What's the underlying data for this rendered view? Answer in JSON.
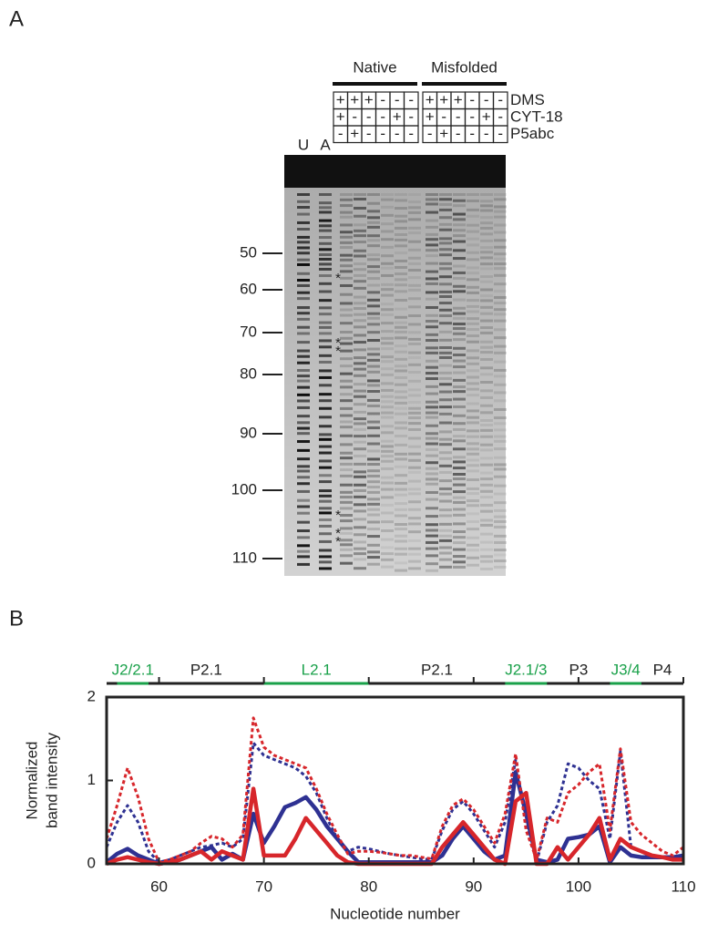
{
  "panel_a": {
    "label": "A",
    "groups": [
      "Native",
      "Misfolded"
    ],
    "conditions": [
      {
        "name": "DMS",
        "signs": [
          "+",
          "+",
          "+",
          "-",
          "-",
          "-",
          "+",
          "+",
          "+",
          "-",
          "-",
          "-"
        ]
      },
      {
        "name": "CYT-18",
        "signs": [
          "+",
          "-",
          "-",
          "-",
          "+",
          "-",
          "+",
          "-",
          "-",
          "-",
          "+",
          "-"
        ]
      },
      {
        "name": "P5abc",
        "signs": [
          "-",
          "+",
          "-",
          "-",
          "-",
          "-",
          "-",
          "+",
          "-",
          "-",
          "-",
          "-"
        ]
      }
    ],
    "ladders": [
      "U",
      "A"
    ],
    "markers": [
      50,
      60,
      70,
      80,
      90,
      100,
      110
    ],
    "asterisk": "*"
  },
  "panel_b_label": "B",
  "chart_data": {
    "type": "line",
    "x_label": "Nucleotide number",
    "y_label": [
      "Normalized",
      "band intensity"
    ],
    "xlim": [
      55,
      110
    ],
    "ylim": [
      0,
      2
    ],
    "xticks": [
      60,
      70,
      80,
      90,
      100,
      110
    ],
    "yticks": [
      0,
      1,
      2
    ],
    "regions": [
      {
        "name": "J2/2.1",
        "start": 56,
        "end": 59,
        "color": "#1aa14a"
      },
      {
        "name": "P2.1",
        "start": 59,
        "end": 70,
        "color": "#222222"
      },
      {
        "name": "L2.1",
        "start": 70,
        "end": 80,
        "color": "#1aa14a"
      },
      {
        "name": "P2.1",
        "start": 80,
        "end": 93,
        "color": "#222222"
      },
      {
        "name": "J2.1/3",
        "start": 93,
        "end": 97,
        "color": "#1aa14a"
      },
      {
        "name": "P3",
        "start": 97,
        "end": 103,
        "color": "#222222"
      },
      {
        "name": "J3/4",
        "start": 103,
        "end": 106,
        "color": "#1aa14a"
      },
      {
        "name": "P4",
        "start": 106,
        "end": 110,
        "color": "#222222"
      }
    ],
    "x": [
      55,
      56,
      57,
      58,
      59,
      60,
      61,
      62,
      63,
      64,
      65,
      66,
      67,
      68,
      69,
      70,
      71,
      72,
      73,
      74,
      75,
      76,
      77,
      78,
      79,
      80,
      81,
      82,
      83,
      84,
      85,
      86,
      87,
      88,
      89,
      90,
      91,
      92,
      93,
      94,
      95,
      96,
      97,
      98,
      99,
      100,
      101,
      102,
      103,
      104,
      105,
      106,
      107,
      108,
      109,
      110
    ],
    "series": [
      {
        "color": "#2e3192",
        "dash": false,
        "values": [
          0.02,
          0.12,
          0.18,
          0.1,
          0.05,
          0,
          0.02,
          0.05,
          0.1,
          0.15,
          0.2,
          0.05,
          0.12,
          0.05,
          0.6,
          0.25,
          0.45,
          0.68,
          0.73,
          0.8,
          0.65,
          0.45,
          0.3,
          0.15,
          0.02,
          0.02,
          0.02,
          0.02,
          0.02,
          0.02,
          0.02,
          0.02,
          0.1,
          0.3,
          0.45,
          0.3,
          0.15,
          0.05,
          0.1,
          1.1,
          0.6,
          0.05,
          0.02,
          0.05,
          0.3,
          0.32,
          0.35,
          0.45,
          0.02,
          0.2,
          0.1,
          0.08,
          0.08,
          0.08,
          0.08,
          0.1
        ]
      },
      {
        "color": "#2e3192",
        "dash": true,
        "values": [
          0.2,
          0.5,
          0.7,
          0.5,
          0.15,
          0.02,
          0.05,
          0.1,
          0.15,
          0.2,
          0.22,
          0.25,
          0.2,
          0.3,
          1.45,
          1.3,
          1.25,
          1.2,
          1.15,
          1.05,
          0.85,
          0.55,
          0.3,
          0.15,
          0.2,
          0.18,
          0.15,
          0.12,
          0.1,
          0.08,
          0.06,
          0.05,
          0.4,
          0.65,
          0.75,
          0.6,
          0.4,
          0.2,
          0.5,
          1.25,
          0.5,
          0.02,
          0.5,
          0.7,
          1.2,
          1.15,
          1.0,
          0.9,
          0.3,
          1.35,
          0.2,
          0.15,
          0.1,
          0.08,
          0.08,
          0.1
        ]
      },
      {
        "color": "#d7262b",
        "dash": false,
        "values": [
          0,
          0.05,
          0.08,
          0.05,
          0.02,
          0,
          0.02,
          0.05,
          0.1,
          0.15,
          0.05,
          0.15,
          0.1,
          0.05,
          0.9,
          0.1,
          0.1,
          0.1,
          0.3,
          0.55,
          0.4,
          0.25,
          0.1,
          0.02,
          0,
          0,
          0,
          0,
          0,
          0,
          0,
          0,
          0.2,
          0.35,
          0.5,
          0.35,
          0.2,
          0.05,
          0,
          0.75,
          0.85,
          0,
          0,
          0.2,
          0.05,
          0.2,
          0.35,
          0.55,
          0.05,
          0.3,
          0.2,
          0.15,
          0.1,
          0.08,
          0.05,
          0.05
        ]
      },
      {
        "color": "#d7262b",
        "dash": true,
        "values": [
          0.3,
          0.7,
          1.15,
          0.8,
          0.3,
          0.02,
          0.05,
          0.1,
          0.15,
          0.25,
          0.33,
          0.3,
          0.2,
          0.35,
          1.75,
          1.4,
          1.3,
          1.25,
          1.2,
          1.15,
          0.9,
          0.6,
          0.35,
          0.12,
          0.15,
          0.15,
          0.14,
          0.12,
          0.1,
          0.1,
          0.08,
          0.06,
          0.45,
          0.7,
          0.78,
          0.65,
          0.45,
          0.25,
          0.6,
          1.32,
          0.4,
          0.05,
          0.55,
          0.5,
          0.85,
          0.95,
          1.1,
          1.2,
          0.4,
          1.38,
          0.5,
          0.35,
          0.25,
          0.15,
          0.1,
          0.2
        ]
      }
    ]
  }
}
